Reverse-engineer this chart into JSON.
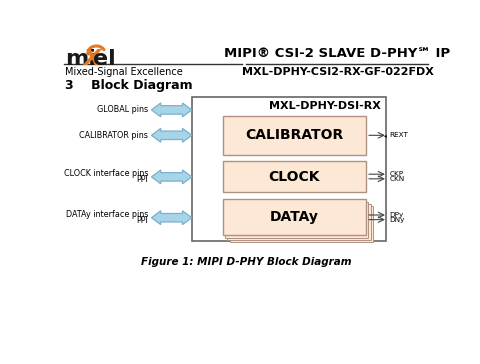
{
  "title_main": "MIPI® CSI-2 SLAVE D-PHY℠ IP",
  "title_sub": "MXL-DPHY-CSI2-RX-GF-022FDX",
  "subtitle_left": "Mixed-Signal Excellence",
  "section_label": "3    Block Diagram",
  "figure_caption": "Figure 1: MIPI D-PHY Block Diagram",
  "outer_box_label": "MXL-DPHY-DSI-RX",
  "block_labels": [
    "CALIBRATOR",
    "CLOCK",
    "DATAy"
  ],
  "arrow_color": "#a8d4ea",
  "arrow_edge_color": "#7ab0cc",
  "block_fill": "#fce8d5",
  "block_edge": "#b09080",
  "outer_box_edge": "#666666",
  "bg_color": "#ffffff",
  "logo_black": "#1a1a1a",
  "logo_orange": "#e87722",
  "header_line_color": "#333333",
  "right_out_labels": [
    [
      "REXT"
    ],
    [
      "CKP",
      "CKN"
    ],
    [
      "DPy",
      "DNy"
    ]
  ],
  "left_in_labels": [
    "GLOBAL pins",
    "CALIBRATOR pins",
    "CLOCK interface pins\nPPI",
    "DATAy interface pins\nPPI"
  ]
}
